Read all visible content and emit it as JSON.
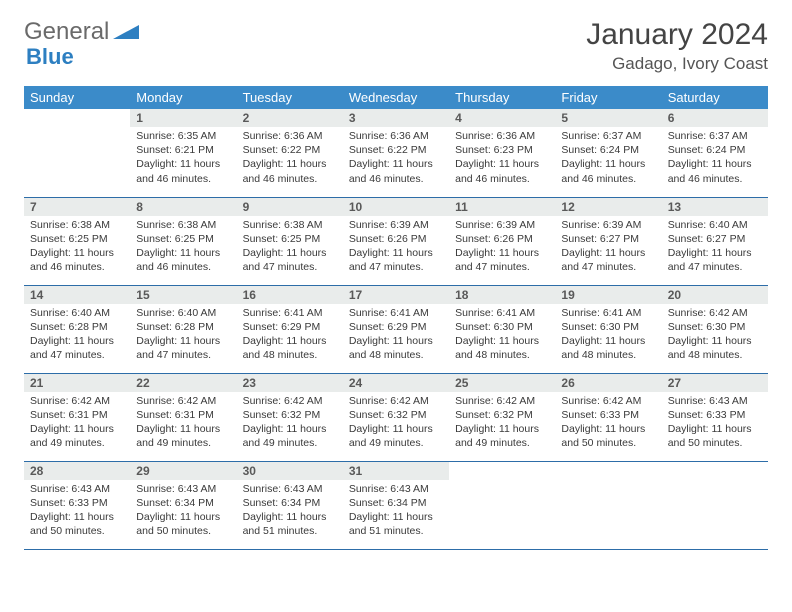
{
  "logo": {
    "text1": "General",
    "text2": "Blue"
  },
  "title": "January 2024",
  "location": "Gadago, Ivory Coast",
  "colors": {
    "header_bg": "#3b8bc9",
    "daynum_bg": "#e9eceb",
    "row_border": "#2d6da8"
  },
  "weekdays": [
    "Sunday",
    "Monday",
    "Tuesday",
    "Wednesday",
    "Thursday",
    "Friday",
    "Saturday"
  ],
  "weeks": [
    [
      null,
      {
        "n": "1",
        "sr": "Sunrise: 6:35 AM",
        "ss": "Sunset: 6:21 PM",
        "d1": "Daylight: 11 hours",
        "d2": "and 46 minutes."
      },
      {
        "n": "2",
        "sr": "Sunrise: 6:36 AM",
        "ss": "Sunset: 6:22 PM",
        "d1": "Daylight: 11 hours",
        "d2": "and 46 minutes."
      },
      {
        "n": "3",
        "sr": "Sunrise: 6:36 AM",
        "ss": "Sunset: 6:22 PM",
        "d1": "Daylight: 11 hours",
        "d2": "and 46 minutes."
      },
      {
        "n": "4",
        "sr": "Sunrise: 6:36 AM",
        "ss": "Sunset: 6:23 PM",
        "d1": "Daylight: 11 hours",
        "d2": "and 46 minutes."
      },
      {
        "n": "5",
        "sr": "Sunrise: 6:37 AM",
        "ss": "Sunset: 6:24 PM",
        "d1": "Daylight: 11 hours",
        "d2": "and 46 minutes."
      },
      {
        "n": "6",
        "sr": "Sunrise: 6:37 AM",
        "ss": "Sunset: 6:24 PM",
        "d1": "Daylight: 11 hours",
        "d2": "and 46 minutes."
      }
    ],
    [
      {
        "n": "7",
        "sr": "Sunrise: 6:38 AM",
        "ss": "Sunset: 6:25 PM",
        "d1": "Daylight: 11 hours",
        "d2": "and 46 minutes."
      },
      {
        "n": "8",
        "sr": "Sunrise: 6:38 AM",
        "ss": "Sunset: 6:25 PM",
        "d1": "Daylight: 11 hours",
        "d2": "and 46 minutes."
      },
      {
        "n": "9",
        "sr": "Sunrise: 6:38 AM",
        "ss": "Sunset: 6:25 PM",
        "d1": "Daylight: 11 hours",
        "d2": "and 47 minutes."
      },
      {
        "n": "10",
        "sr": "Sunrise: 6:39 AM",
        "ss": "Sunset: 6:26 PM",
        "d1": "Daylight: 11 hours",
        "d2": "and 47 minutes."
      },
      {
        "n": "11",
        "sr": "Sunrise: 6:39 AM",
        "ss": "Sunset: 6:26 PM",
        "d1": "Daylight: 11 hours",
        "d2": "and 47 minutes."
      },
      {
        "n": "12",
        "sr": "Sunrise: 6:39 AM",
        "ss": "Sunset: 6:27 PM",
        "d1": "Daylight: 11 hours",
        "d2": "and 47 minutes."
      },
      {
        "n": "13",
        "sr": "Sunrise: 6:40 AM",
        "ss": "Sunset: 6:27 PM",
        "d1": "Daylight: 11 hours",
        "d2": "and 47 minutes."
      }
    ],
    [
      {
        "n": "14",
        "sr": "Sunrise: 6:40 AM",
        "ss": "Sunset: 6:28 PM",
        "d1": "Daylight: 11 hours",
        "d2": "and 47 minutes."
      },
      {
        "n": "15",
        "sr": "Sunrise: 6:40 AM",
        "ss": "Sunset: 6:28 PM",
        "d1": "Daylight: 11 hours",
        "d2": "and 47 minutes."
      },
      {
        "n": "16",
        "sr": "Sunrise: 6:41 AM",
        "ss": "Sunset: 6:29 PM",
        "d1": "Daylight: 11 hours",
        "d2": "and 48 minutes."
      },
      {
        "n": "17",
        "sr": "Sunrise: 6:41 AM",
        "ss": "Sunset: 6:29 PM",
        "d1": "Daylight: 11 hours",
        "d2": "and 48 minutes."
      },
      {
        "n": "18",
        "sr": "Sunrise: 6:41 AM",
        "ss": "Sunset: 6:30 PM",
        "d1": "Daylight: 11 hours",
        "d2": "and 48 minutes."
      },
      {
        "n": "19",
        "sr": "Sunrise: 6:41 AM",
        "ss": "Sunset: 6:30 PM",
        "d1": "Daylight: 11 hours",
        "d2": "and 48 minutes."
      },
      {
        "n": "20",
        "sr": "Sunrise: 6:42 AM",
        "ss": "Sunset: 6:30 PM",
        "d1": "Daylight: 11 hours",
        "d2": "and 48 minutes."
      }
    ],
    [
      {
        "n": "21",
        "sr": "Sunrise: 6:42 AM",
        "ss": "Sunset: 6:31 PM",
        "d1": "Daylight: 11 hours",
        "d2": "and 49 minutes."
      },
      {
        "n": "22",
        "sr": "Sunrise: 6:42 AM",
        "ss": "Sunset: 6:31 PM",
        "d1": "Daylight: 11 hours",
        "d2": "and 49 minutes."
      },
      {
        "n": "23",
        "sr": "Sunrise: 6:42 AM",
        "ss": "Sunset: 6:32 PM",
        "d1": "Daylight: 11 hours",
        "d2": "and 49 minutes."
      },
      {
        "n": "24",
        "sr": "Sunrise: 6:42 AM",
        "ss": "Sunset: 6:32 PM",
        "d1": "Daylight: 11 hours",
        "d2": "and 49 minutes."
      },
      {
        "n": "25",
        "sr": "Sunrise: 6:42 AM",
        "ss": "Sunset: 6:32 PM",
        "d1": "Daylight: 11 hours",
        "d2": "and 49 minutes."
      },
      {
        "n": "26",
        "sr": "Sunrise: 6:42 AM",
        "ss": "Sunset: 6:33 PM",
        "d1": "Daylight: 11 hours",
        "d2": "and 50 minutes."
      },
      {
        "n": "27",
        "sr": "Sunrise: 6:43 AM",
        "ss": "Sunset: 6:33 PM",
        "d1": "Daylight: 11 hours",
        "d2": "and 50 minutes."
      }
    ],
    [
      {
        "n": "28",
        "sr": "Sunrise: 6:43 AM",
        "ss": "Sunset: 6:33 PM",
        "d1": "Daylight: 11 hours",
        "d2": "and 50 minutes."
      },
      {
        "n": "29",
        "sr": "Sunrise: 6:43 AM",
        "ss": "Sunset: 6:34 PM",
        "d1": "Daylight: 11 hours",
        "d2": "and 50 minutes."
      },
      {
        "n": "30",
        "sr": "Sunrise: 6:43 AM",
        "ss": "Sunset: 6:34 PM",
        "d1": "Daylight: 11 hours",
        "d2": "and 51 minutes."
      },
      {
        "n": "31",
        "sr": "Sunrise: 6:43 AM",
        "ss": "Sunset: 6:34 PM",
        "d1": "Daylight: 11 hours",
        "d2": "and 51 minutes."
      },
      null,
      null,
      null
    ]
  ]
}
